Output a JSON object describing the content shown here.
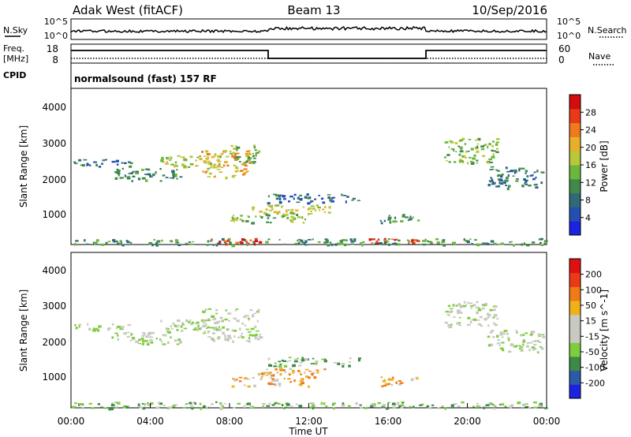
{
  "header": {
    "station": "Adak West (fitACF)",
    "beam": "Beam 13",
    "date": "10/Sep/2016"
  },
  "noise_panel": {
    "left_label": "N.Sky",
    "right_label": "N.Search",
    "left_ticks": [
      "10^5",
      "10^0"
    ],
    "right_ticks": [
      "10^5",
      "10^0"
    ]
  },
  "freq_panel": {
    "left_label_1": "Freq.",
    "left_label_2": "[MHz]",
    "left_ticks": [
      "18",
      "8"
    ],
    "right_label": "Nave",
    "right_ticks": [
      "60",
      "0"
    ],
    "cpid_label": "CPID",
    "cpid_value": "normalsound (fast) 157 RF"
  },
  "chart_data": [
    {
      "type": "heatmap",
      "name": "power",
      "ylabel": "Slant Range [km]",
      "ylim": [
        180,
        4500
      ],
      "yticks": [
        "4000",
        "3000",
        "2000",
        "1000"
      ],
      "colorbar": {
        "label": "Power [dB]",
        "ticks": [
          "28",
          "24",
          "20",
          "16",
          "12",
          "8",
          "4"
        ],
        "colors": [
          "#1b22e0",
          "#234fb0",
          "#2f6a78",
          "#3f8a4a",
          "#6cb63c",
          "#b9c83a",
          "#e8b028",
          "#ef7a1e",
          "#e83a16",
          "#d50c0c"
        ]
      },
      "regions": [
        {
          "t0": 0.1,
          "t1": 3.0,
          "r0": 2350,
          "r1": 2550,
          "level": 2
        },
        {
          "t0": 2.0,
          "t1": 5.5,
          "r0": 1950,
          "r1": 2300,
          "level": 3
        },
        {
          "t0": 4.5,
          "t1": 7.5,
          "r0": 2300,
          "r1": 2650,
          "level": 5
        },
        {
          "t0": 6.5,
          "t1": 9.0,
          "r0": 2050,
          "r1": 2800,
          "level": 6
        },
        {
          "t0": 8.0,
          "t1": 9.5,
          "r0": 2450,
          "r1": 2950,
          "level": 4
        },
        {
          "t0": 9.8,
          "t1": 14.5,
          "r0": 1350,
          "r1": 1600,
          "level": 2
        },
        {
          "t0": 9.0,
          "t1": 13.0,
          "r0": 1050,
          "r1": 1300,
          "level": 5
        },
        {
          "t0": 8.0,
          "t1": 12.0,
          "r0": 800,
          "r1": 1050,
          "level": 4
        },
        {
          "t0": 15.5,
          "t1": 17.5,
          "r0": 800,
          "r1": 1050,
          "level": 3
        },
        {
          "t0": 18.8,
          "t1": 21.5,
          "r0": 2450,
          "r1": 3150,
          "level": 4
        },
        {
          "t0": 21.0,
          "t1": 23.8,
          "r0": 1750,
          "r1": 2350,
          "level": 2
        },
        {
          "t0": 0.0,
          "t1": 24.0,
          "r0": 180,
          "r1": 360,
          "level": 3
        },
        {
          "t0": 7.0,
          "t1": 9.5,
          "r0": 220,
          "r1": 360,
          "level": 8
        },
        {
          "t0": 15.0,
          "t1": 17.5,
          "r0": 220,
          "r1": 360,
          "level": 8
        }
      ]
    },
    {
      "type": "heatmap",
      "name": "velocity",
      "ylabel": "Slant Range [km]",
      "ylim": [
        180,
        4500
      ],
      "yticks": [
        "4000",
        "3000",
        "2000",
        "1000"
      ],
      "colorbar": {
        "label": "Velocity [m s^-1]",
        "ticks": [
          "200",
          "100",
          "50",
          "15",
          "-15",
          "-50",
          "-100",
          "-200"
        ],
        "colors": [
          "#1b22e0",
          "#2a5aa8",
          "#3d8a48",
          "#7dcd3c",
          "#c9c9c1",
          "#c9c9c1",
          "#f0b018",
          "#f07a18",
          "#ea3a18",
          "#e01010"
        ]
      },
      "regions": [
        {
          "t0": 0.1,
          "t1": 3.0,
          "r0": 2350,
          "r1": 2550,
          "level": 4
        },
        {
          "t0": 2.0,
          "t1": 5.5,
          "r0": 1950,
          "r1": 2300,
          "level": 4
        },
        {
          "t0": 4.5,
          "t1": 7.5,
          "r0": 2300,
          "r1": 2650,
          "level": 4
        },
        {
          "t0": 6.5,
          "t1": 9.5,
          "r0": 2050,
          "r1": 2950,
          "level": 4
        },
        {
          "t0": 9.8,
          "t1": 14.5,
          "r0": 1350,
          "r1": 1600,
          "level": 3
        },
        {
          "t0": 9.0,
          "t1": 13.0,
          "r0": 1050,
          "r1": 1300,
          "level": 6
        },
        {
          "t0": 8.0,
          "t1": 12.0,
          "r0": 800,
          "r1": 1050,
          "level": 6
        },
        {
          "t0": 15.5,
          "t1": 17.5,
          "r0": 800,
          "r1": 1050,
          "level": 6
        },
        {
          "t0": 18.8,
          "t1": 21.5,
          "r0": 2450,
          "r1": 3150,
          "level": 4
        },
        {
          "t0": 21.0,
          "t1": 23.8,
          "r0": 1750,
          "r1": 2350,
          "level": 4
        },
        {
          "t0": 0.0,
          "t1": 24.0,
          "r0": 180,
          "r1": 360,
          "level": 3
        }
      ]
    }
  ],
  "time_axis": {
    "ticks": [
      "00:00",
      "04:00",
      "08:00",
      "12:00",
      "16:00",
      "20:00",
      "00:00"
    ],
    "label": "Time UT"
  }
}
